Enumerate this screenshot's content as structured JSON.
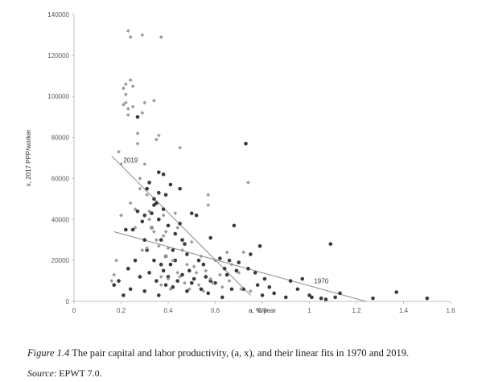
{
  "chart_data": {
    "type": "scatter",
    "title": "",
    "xlabel": "a, %/year",
    "ylabel": "x, 2017 PPP/worker",
    "xlim": [
      0,
      1.6
    ],
    "ylim": [
      0,
      140000
    ],
    "xticks": [
      "0",
      "0.2",
      "0.4",
      "0.6",
      "0.8",
      "1",
      "1.2",
      "1.4",
      "1.6"
    ],
    "yticks": [
      "0",
      "20000",
      "40000",
      "60000",
      "80000",
      "100000",
      "120000",
      "140000"
    ],
    "grid": false,
    "series": [
      {
        "name": "1970",
        "marker": "circle",
        "color": "#3a3a3a",
        "points": [
          [
            0.17,
            8000
          ],
          [
            0.19,
            10000
          ],
          [
            0.21,
            3000
          ],
          [
            0.22,
            35000
          ],
          [
            0.23,
            16000
          ],
          [
            0.24,
            6000
          ],
          [
            0.25,
            35000
          ],
          [
            0.26,
            20000
          ],
          [
            0.27,
            90000
          ],
          [
            0.27,
            44000
          ],
          [
            0.28,
            12000
          ],
          [
            0.29,
            39000
          ],
          [
            0.3,
            30000
          ],
          [
            0.3,
            42000
          ],
          [
            0.3,
            5000
          ],
          [
            0.31,
            55000
          ],
          [
            0.31,
            25000
          ],
          [
            0.32,
            14000
          ],
          [
            0.32,
            58000
          ],
          [
            0.33,
            43000
          ],
          [
            0.33,
            36000
          ],
          [
            0.34,
            47000
          ],
          [
            0.34,
            50000
          ],
          [
            0.34,
            20000
          ],
          [
            0.35,
            10000
          ],
          [
            0.35,
            48000
          ],
          [
            0.36,
            53000
          ],
          [
            0.36,
            40000
          ],
          [
            0.36,
            63000
          ],
          [
            0.36,
            3000
          ],
          [
            0.37,
            18000
          ],
          [
            0.37,
            30000
          ],
          [
            0.38,
            62000
          ],
          [
            0.38,
            45000
          ],
          [
            0.38,
            15000
          ],
          [
            0.39,
            52000
          ],
          [
            0.39,
            22000
          ],
          [
            0.39,
            8000
          ],
          [
            0.4,
            12000
          ],
          [
            0.4,
            37000
          ],
          [
            0.41,
            57000
          ],
          [
            0.41,
            18000
          ],
          [
            0.42,
            25000
          ],
          [
            0.42,
            7000
          ],
          [
            0.43,
            33000
          ],
          [
            0.43,
            20000
          ],
          [
            0.44,
            10000
          ],
          [
            0.45,
            55000
          ],
          [
            0.45,
            38000
          ],
          [
            0.46,
            30000
          ],
          [
            0.46,
            13000
          ],
          [
            0.47,
            28000
          ],
          [
            0.48,
            23000
          ],
          [
            0.48,
            5000
          ],
          [
            0.49,
            15000
          ],
          [
            0.5,
            43000
          ],
          [
            0.5,
            9000
          ],
          [
            0.51,
            11000
          ],
          [
            0.52,
            42000
          ],
          [
            0.53,
            20000
          ],
          [
            0.54,
            6000
          ],
          [
            0.55,
            18000
          ],
          [
            0.56,
            12000
          ],
          [
            0.57,
            4000
          ],
          [
            0.58,
            31000
          ],
          [
            0.58,
            10000
          ],
          [
            0.6,
            9000
          ],
          [
            0.62,
            21000
          ],
          [
            0.63,
            2000
          ],
          [
            0.64,
            16000
          ],
          [
            0.65,
            13000
          ],
          [
            0.66,
            20000
          ],
          [
            0.67,
            6000
          ],
          [
            0.68,
            37000
          ],
          [
            0.69,
            15000
          ],
          [
            0.7,
            19000
          ],
          [
            0.72,
            6000
          ],
          [
            0.73,
            77000
          ],
          [
            0.74,
            16000
          ],
          [
            0.75,
            23000
          ],
          [
            0.77,
            14000
          ],
          [
            0.78,
            8000
          ],
          [
            0.79,
            27000
          ],
          [
            0.8,
            3000
          ],
          [
            0.81,
            11000
          ],
          [
            0.83,
            7000
          ],
          [
            0.85,
            4000
          ],
          [
            0.9,
            2000
          ],
          [
            0.92,
            10000
          ],
          [
            0.95,
            6000
          ],
          [
            0.97,
            11000
          ],
          [
            1.0,
            3000
          ],
          [
            1.01,
            2000
          ],
          [
            1.05,
            1500
          ],
          [
            1.07,
            1000
          ],
          [
            1.09,
            28000
          ],
          [
            1.11,
            2000
          ],
          [
            1.13,
            4000
          ],
          [
            1.27,
            1500
          ],
          [
            1.37,
            4500
          ],
          [
            1.5,
            1500
          ]
        ]
      },
      {
        "name": "2019",
        "marker": "diamond",
        "color": "#9a9a9a",
        "points": [
          [
            0.16,
            10000
          ],
          [
            0.17,
            13000
          ],
          [
            0.18,
            20000
          ],
          [
            0.19,
            73000
          ],
          [
            0.2,
            67000
          ],
          [
            0.2,
            42000
          ],
          [
            0.21,
            96000
          ],
          [
            0.21,
            104000
          ],
          [
            0.22,
            106000
          ],
          [
            0.22,
            101000
          ],
          [
            0.22,
            97000
          ],
          [
            0.23,
            132000
          ],
          [
            0.23,
            94000
          ],
          [
            0.23,
            91000
          ],
          [
            0.24,
            129000
          ],
          [
            0.24,
            108000
          ],
          [
            0.24,
            48000
          ],
          [
            0.25,
            105000
          ],
          [
            0.25,
            95000
          ],
          [
            0.26,
            36000
          ],
          [
            0.26,
            45000
          ],
          [
            0.27,
            82000
          ],
          [
            0.27,
            77000
          ],
          [
            0.28,
            55000
          ],
          [
            0.28,
            60000
          ],
          [
            0.29,
            130000
          ],
          [
            0.29,
            92000
          ],
          [
            0.29,
            25000
          ],
          [
            0.3,
            97000
          ],
          [
            0.3,
            67000
          ],
          [
            0.31,
            26000
          ],
          [
            0.31,
            52000
          ],
          [
            0.32,
            44000
          ],
          [
            0.32,
            40000
          ],
          [
            0.33,
            36000
          ],
          [
            0.34,
            34000
          ],
          [
            0.34,
            98000
          ],
          [
            0.35,
            30000
          ],
          [
            0.35,
            79000
          ],
          [
            0.36,
            81000
          ],
          [
            0.36,
            27000
          ],
          [
            0.37,
            129000
          ],
          [
            0.37,
            12000
          ],
          [
            0.37,
            8000
          ],
          [
            0.38,
            42000
          ],
          [
            0.38,
            32000
          ],
          [
            0.39,
            34000
          ],
          [
            0.39,
            22000
          ],
          [
            0.4,
            26000
          ],
          [
            0.4,
            11000
          ],
          [
            0.41,
            6000
          ],
          [
            0.42,
            20000
          ],
          [
            0.43,
            43000
          ],
          [
            0.44,
            36000
          ],
          [
            0.44,
            14000
          ],
          [
            0.45,
            75000
          ],
          [
            0.45,
            12000
          ],
          [
            0.46,
            25000
          ],
          [
            0.47,
            9000
          ],
          [
            0.48,
            18000
          ],
          [
            0.49,
            6000
          ],
          [
            0.5,
            29000
          ],
          [
            0.51,
            17000
          ],
          [
            0.52,
            14000
          ],
          [
            0.53,
            8000
          ],
          [
            0.54,
            22000
          ],
          [
            0.55,
            5000
          ],
          [
            0.56,
            15000
          ],
          [
            0.57,
            47000
          ],
          [
            0.57,
            52000
          ],
          [
            0.58,
            11000
          ],
          [
            0.59,
            9000
          ],
          [
            0.6,
            20000
          ],
          [
            0.62,
            13000
          ],
          [
            0.63,
            7000
          ],
          [
            0.65,
            24000
          ],
          [
            0.66,
            10000
          ],
          [
            0.67,
            18000
          ],
          [
            0.7,
            14000
          ],
          [
            0.71,
            6000
          ],
          [
            0.72,
            24000
          ],
          [
            0.74,
            58000
          ],
          [
            0.75,
            5000
          ]
        ]
      }
    ],
    "fit_lines": [
      {
        "label": "2019",
        "from": [
          0.16,
          71000
        ],
        "to": [
          0.75,
          3000
        ],
        "label_at": [
          0.21,
          69000
        ]
      },
      {
        "label": "1970",
        "from": [
          0.17,
          34000
        ],
        "to": [
          1.24,
          0
        ],
        "label_at": [
          1.02,
          10000
        ]
      }
    ]
  },
  "caption": {
    "figure_label": "Figure 1.4",
    "text": "  The pair capital and labor productivity, (a, x), and their linear fits in 1970 and 2019.",
    "source_label": "Source",
    "source_text": ": EPWT 7.0."
  }
}
